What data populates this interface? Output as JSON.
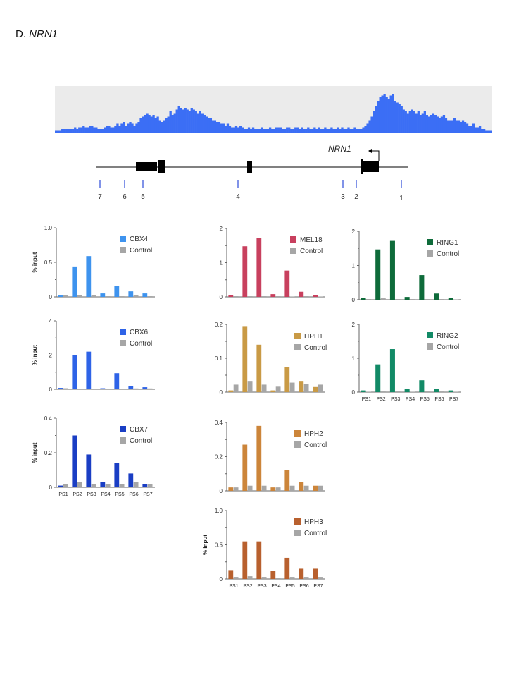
{
  "panel": {
    "label": "D.",
    "gene": "NRN1"
  },
  "gene_model": {
    "gene_label": "NRN1",
    "primers": [
      "7",
      "6",
      "5",
      "4",
      "3",
      "2",
      "1"
    ]
  },
  "colors": {
    "track": "#3b6ef5",
    "control": "#a6a6a6",
    "axis": "#666666"
  },
  "chart_data": [
    {
      "type": "area",
      "id": "coverage-track",
      "x_range": [
        0,
        620
      ],
      "heights": [
        1,
        1,
        1,
        2,
        2,
        2,
        2,
        2,
        2,
        3,
        2,
        3,
        3,
        4,
        3,
        3,
        4,
        4,
        3,
        3,
        2,
        2,
        2,
        3,
        4,
        4,
        3,
        3,
        4,
        5,
        4,
        5,
        6,
        4,
        5,
        6,
        5,
        4,
        5,
        6,
        8,
        9,
        10,
        11,
        10,
        9,
        10,
        8,
        9,
        7,
        6,
        7,
        8,
        9,
        12,
        10,
        11,
        13,
        15,
        14,
        13,
        14,
        13,
        12,
        14,
        13,
        12,
        11,
        12,
        11,
        10,
        9,
        8,
        8,
        7,
        7,
        6,
        6,
        5,
        5,
        4,
        5,
        4,
        3,
        3,
        4,
        3,
        4,
        3,
        2,
        2,
        3,
        2,
        3,
        2,
        2,
        2,
        3,
        2,
        2,
        2,
        3,
        2,
        2,
        3,
        3,
        3,
        2,
        2,
        3,
        3,
        2,
        2,
        3,
        3,
        2,
        3,
        2,
        2,
        3,
        2,
        2,
        3,
        2,
        3,
        2,
        2,
        3,
        2,
        2,
        3,
        2,
        2,
        3,
        2,
        3,
        2,
        2,
        3,
        2,
        2,
        3,
        2,
        2,
        2,
        3,
        4,
        5,
        7,
        9,
        12,
        15,
        18,
        20,
        21,
        22,
        20,
        19,
        21,
        22,
        18,
        17,
        16,
        15,
        13,
        12,
        11,
        12,
        13,
        12,
        11,
        12,
        10,
        11,
        12,
        10,
        9,
        10,
        11,
        10,
        9,
        8,
        9,
        10,
        8,
        7,
        7,
        7,
        8,
        7,
        7,
        6,
        7,
        6,
        5,
        4,
        4,
        5,
        3,
        3,
        4,
        2,
        2,
        1,
        1,
        1
      ]
    },
    {
      "type": "bar",
      "id": "cbx4",
      "categories": [
        "PS1",
        "PS2",
        "PS3",
        "PS4",
        "PS5",
        "PS6",
        "PS7"
      ],
      "series": [
        {
          "name": "CBX4",
          "color": "#3e93ee",
          "values": [
            0.02,
            0.44,
            0.59,
            0.05,
            0.16,
            0.08,
            0.05
          ]
        },
        {
          "name": "Control",
          "color": "#a6a6a6",
          "values": [
            0.02,
            0.03,
            0.02,
            0.01,
            0.01,
            0.02,
            0.01
          ]
        }
      ],
      "ylim": [
        0,
        1.0
      ],
      "yticks": [
        "0",
        "0.5",
        "1.0"
      ],
      "ylabel": "% input",
      "show_x_labels": false
    },
    {
      "type": "bar",
      "id": "cbx6",
      "categories": [
        "PS1",
        "PS2",
        "PS3",
        "PS4",
        "PS5",
        "PS6",
        "PS7"
      ],
      "series": [
        {
          "name": "CBX6",
          "color": "#2e63e7",
          "values": [
            0.08,
            1.98,
            2.2,
            0.06,
            0.94,
            0.2,
            0.12
          ]
        },
        {
          "name": "Control",
          "color": "#a6a6a6",
          "values": [
            0.06,
            0.02,
            0.02,
            0.03,
            0.03,
            0.05,
            0.05
          ]
        }
      ],
      "ylim": [
        0,
        4
      ],
      "yticks": [
        "0",
        "2",
        "4"
      ],
      "ylabel": "% input",
      "show_x_labels": false
    },
    {
      "type": "bar",
      "id": "cbx7",
      "categories": [
        "PS1",
        "PS2",
        "PS3",
        "PS4",
        "PS5",
        "PS6",
        "PS7"
      ],
      "series": [
        {
          "name": "CBX7",
          "color": "#1a3ec4",
          "values": [
            0.01,
            0.3,
            0.19,
            0.03,
            0.14,
            0.08,
            0.02
          ]
        },
        {
          "name": "Control",
          "color": "#a6a6a6",
          "values": [
            0.02,
            0.03,
            0.02,
            0.02,
            0.02,
            0.03,
            0.02
          ]
        }
      ],
      "ylim": [
        0,
        0.4
      ],
      "yticks": [
        "0",
        "0.2",
        "0.4"
      ],
      "ylabel": "% input",
      "show_x_labels": true
    },
    {
      "type": "bar",
      "id": "mel18",
      "categories": [
        "PS1",
        "PS2",
        "PS3",
        "PS4",
        "PS5",
        "PS6",
        "PS7"
      ],
      "series": [
        {
          "name": "MEL18",
          "color": "#c8405e",
          "values": [
            0.05,
            1.48,
            1.72,
            0.08,
            0.77,
            0.15,
            0.05
          ]
        },
        {
          "name": "Control",
          "color": "#a6a6a6",
          "values": [
            0.02,
            0.02,
            0.02,
            0.02,
            0.01,
            0.02,
            0.01
          ]
        }
      ],
      "ylim": [
        0,
        2
      ],
      "yticks": [
        "0",
        "1",
        "2"
      ],
      "ylabel": "",
      "show_x_labels": false
    },
    {
      "type": "bar",
      "id": "hph1",
      "categories": [
        "PS1",
        "PS2",
        "PS3",
        "PS4",
        "PS5",
        "PS6",
        "PS7"
      ],
      "series": [
        {
          "name": "HPH1",
          "color": "#c99a45",
          "values": [
            0.005,
            0.195,
            0.14,
            0.005,
            0.074,
            0.033,
            0.015
          ]
        },
        {
          "name": "Control",
          "color": "#a6a6a6",
          "values": [
            0.022,
            0.033,
            0.022,
            0.016,
            0.028,
            0.025,
            0.022
          ]
        }
      ],
      "ylim": [
        0,
        0.2
      ],
      "yticks": [
        "0",
        "0.1",
        "0.2"
      ],
      "ylabel": "",
      "show_x_labels": false
    },
    {
      "type": "bar",
      "id": "hph2",
      "categories": [
        "PS1",
        "PS2",
        "PS3",
        "PS4",
        "PS5",
        "PS6",
        "PS7"
      ],
      "series": [
        {
          "name": "HPH2",
          "color": "#cc853a",
          "values": [
            0.02,
            0.27,
            0.38,
            0.02,
            0.12,
            0.05,
            0.03
          ]
        },
        {
          "name": "Control",
          "color": "#a6a6a6",
          "values": [
            0.02,
            0.03,
            0.03,
            0.02,
            0.03,
            0.03,
            0.03
          ]
        }
      ],
      "ylim": [
        0,
        0.4
      ],
      "yticks": [
        "0",
        "0.2",
        "0.4"
      ],
      "ylabel": "",
      "show_x_labels": false
    },
    {
      "type": "bar",
      "id": "hph3",
      "categories": [
        "PS1",
        "PS2",
        "PS3",
        "PS4",
        "PS5",
        "PS6",
        "PS7"
      ],
      "series": [
        {
          "name": "HPH3",
          "color": "#b8602e",
          "values": [
            0.13,
            0.55,
            0.55,
            0.12,
            0.31,
            0.15,
            0.15
          ]
        },
        {
          "name": "Control",
          "color": "#a6a6a6",
          "values": [
            0.03,
            0.04,
            0.03,
            0.02,
            0.03,
            0.03,
            0.03
          ]
        }
      ],
      "ylim": [
        0,
        1.0
      ],
      "yticks": [
        "0",
        "0.5",
        "1.0"
      ],
      "ylabel": "% input",
      "show_x_labels": true
    },
    {
      "type": "bar",
      "id": "ring1",
      "categories": [
        "PS1",
        "PS2",
        "PS3",
        "PS4",
        "PS5",
        "PS6",
        "PS7"
      ],
      "series": [
        {
          "name": "RING1",
          "color": "#0e6b3a",
          "values": [
            0.05,
            1.47,
            1.72,
            0.08,
            0.72,
            0.18,
            0.05
          ]
        },
        {
          "name": "Control",
          "color": "#a6a6a6",
          "values": [
            0.02,
            0.04,
            0.02,
            0.02,
            0.02,
            0.02,
            0.01
          ]
        }
      ],
      "ylim": [
        0,
        2
      ],
      "yticks": [
        "0",
        "1",
        "2"
      ],
      "ylabel": "",
      "show_x_labels": false
    },
    {
      "type": "bar",
      "id": "ring2",
      "categories": [
        "PS1",
        "PS2",
        "PS3",
        "PS4",
        "PS5",
        "PS6",
        "PS7"
      ],
      "series": [
        {
          "name": "RING2",
          "color": "#128a66",
          "values": [
            0.05,
            0.82,
            1.27,
            0.09,
            0.35,
            0.1,
            0.05
          ]
        },
        {
          "name": "Control",
          "color": "#a6a6a6",
          "values": [
            0.01,
            0.02,
            0.02,
            0.01,
            0.02,
            0.02,
            0.01
          ]
        }
      ],
      "ylim": [
        0,
        2
      ],
      "yticks": [
        "0",
        "1",
        "2"
      ],
      "ylabel": "",
      "show_x_labels": true
    }
  ]
}
